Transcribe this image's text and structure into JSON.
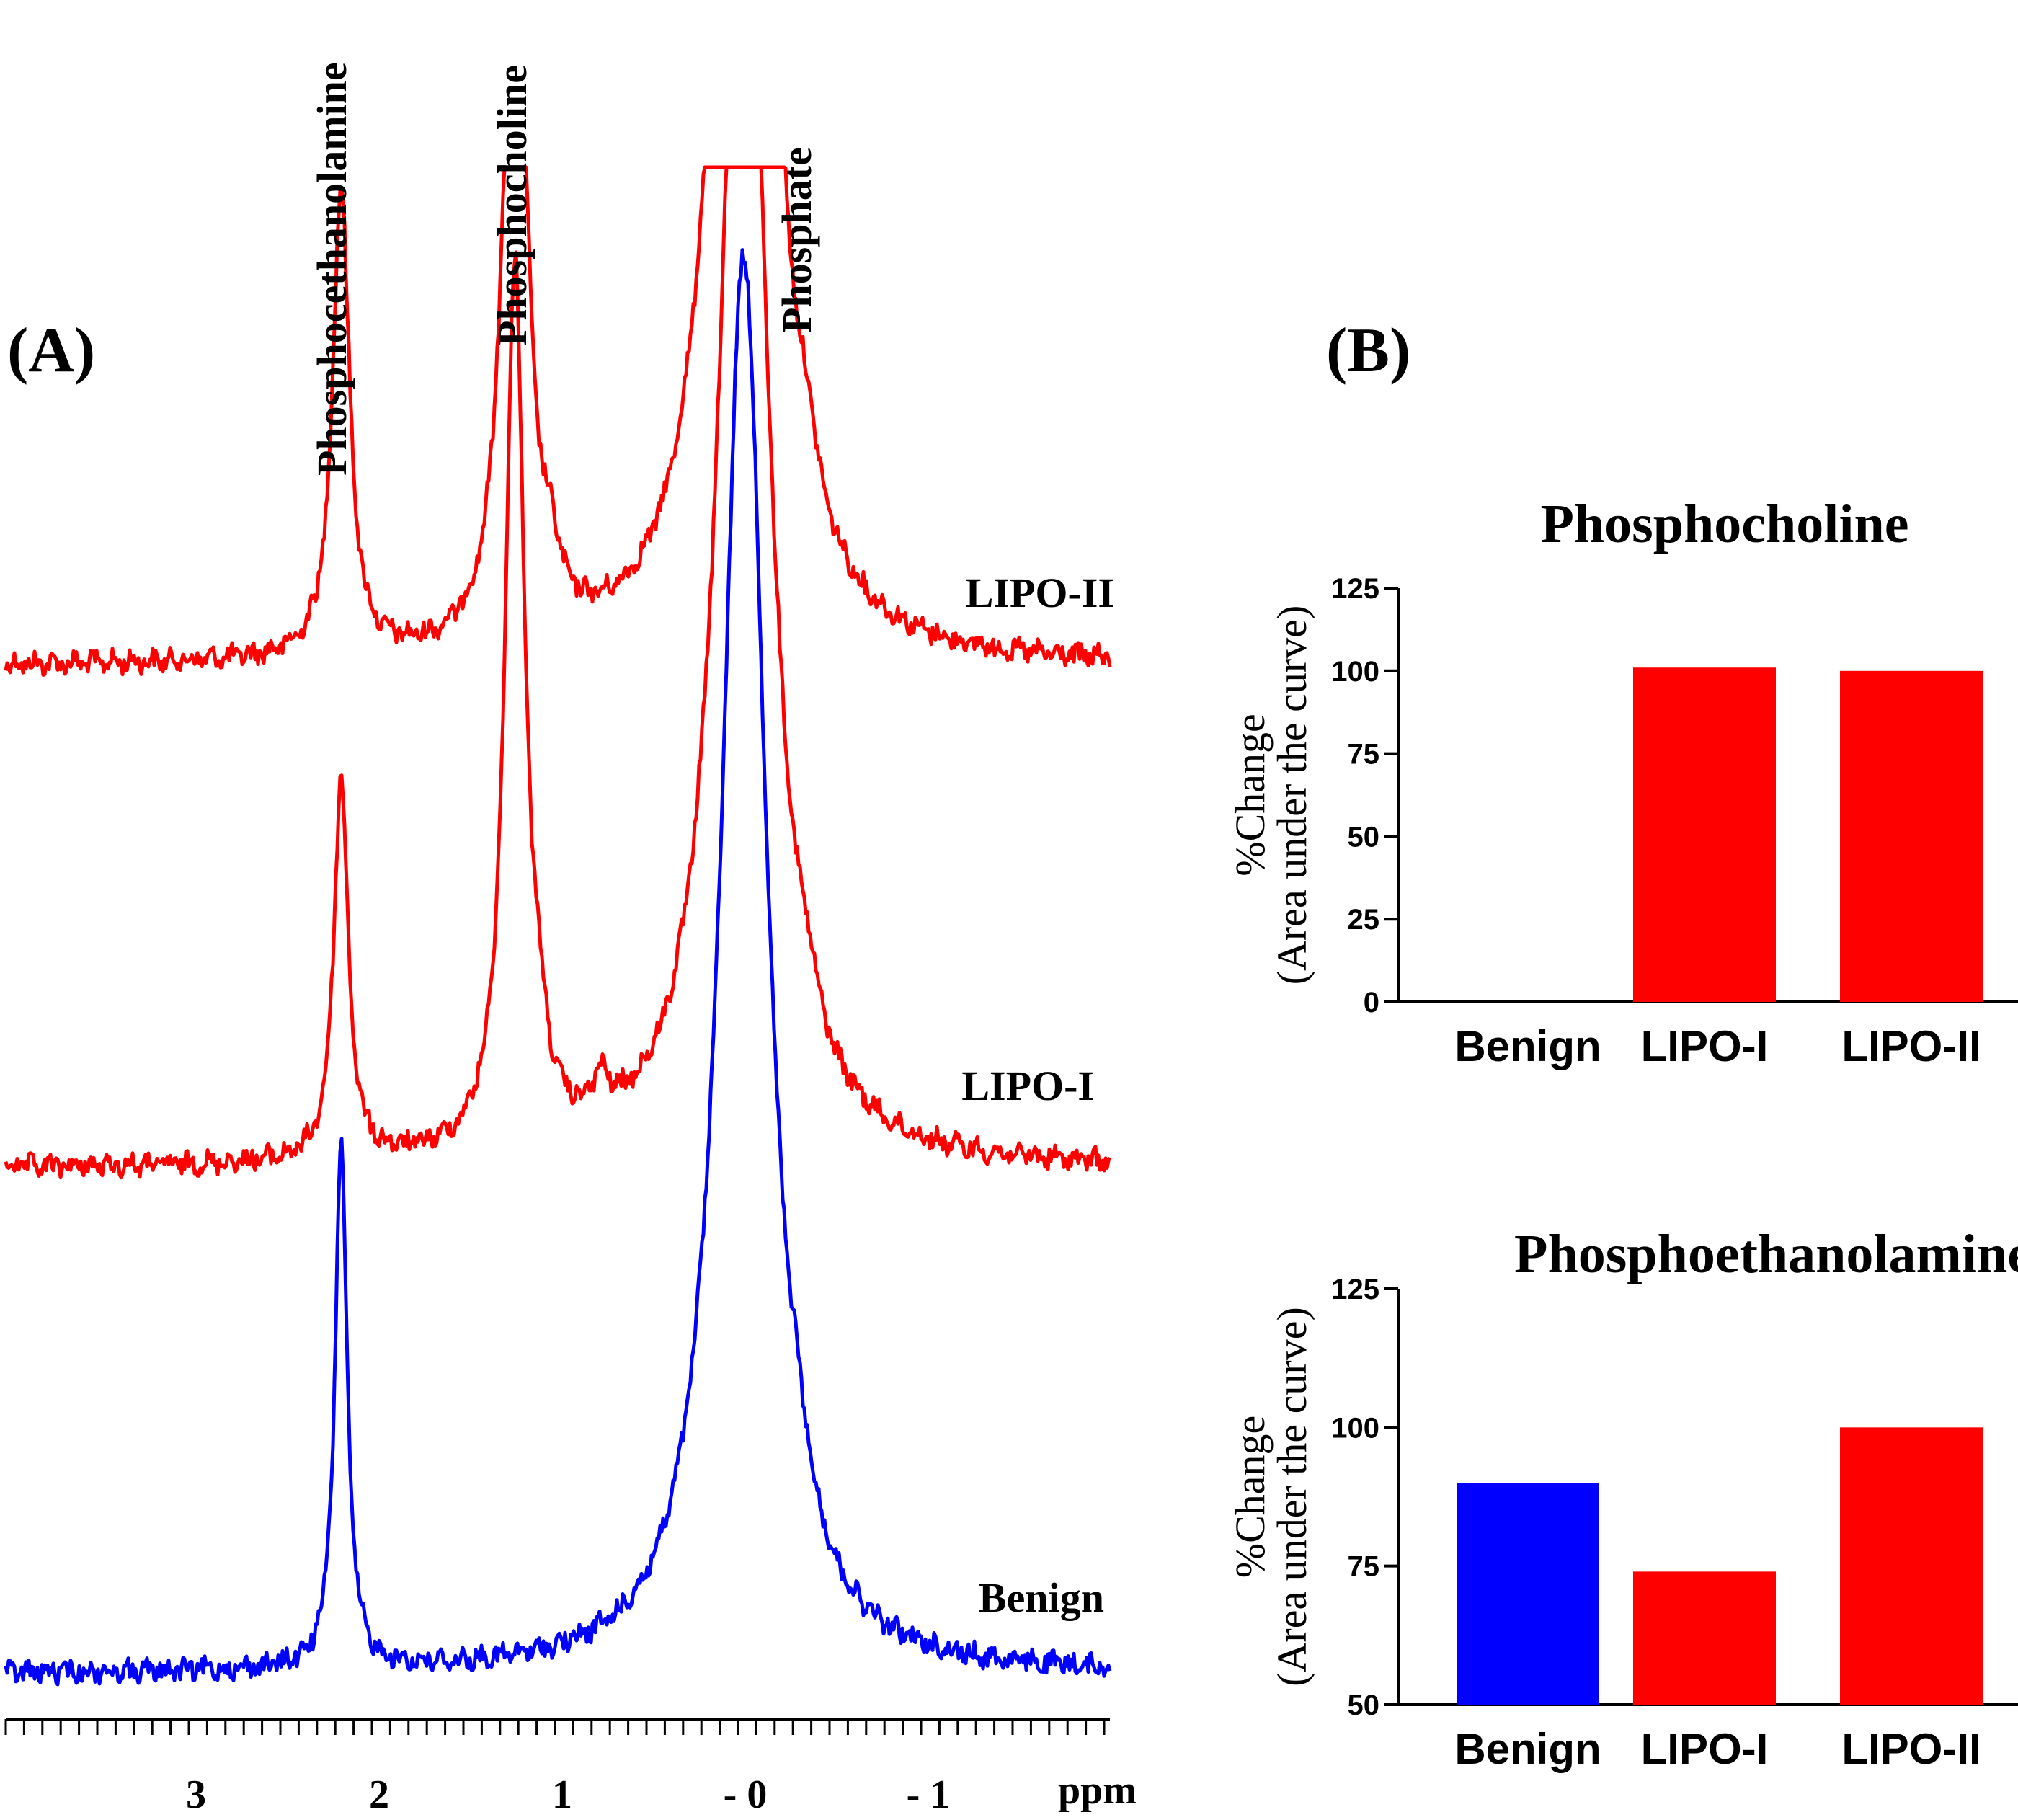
{
  "panel_a": {
    "label": "(A)",
    "peak_labels": [
      "Phosphocethanolamine",
      "Phosphocholine",
      "Phosphate"
    ],
    "trace_labels": [
      "LIPO-II",
      "LIPO-I",
      "Benign"
    ],
    "axis_unit": "ppm",
    "tick_labels": [
      "3",
      "2",
      "1",
      "- 0",
      "- 1"
    ]
  },
  "panel_b": {
    "label": "(B)"
  },
  "chart_data": [
    {
      "type": "line",
      "title": "",
      "xlabel": "ppm",
      "ylabel": "",
      "xlim": [
        4.0,
        -2.0
      ],
      "x_reversed": true,
      "x_ticks": [
        3,
        2,
        1,
        0,
        -1
      ],
      "peaks": [
        {
          "name": "Phosphocethanolamine",
          "ppm": 2.2
        },
        {
          "name": "Phosphocholine",
          "ppm": 1.25
        },
        {
          "name": "Phosphate",
          "ppm": 0.0
        }
      ],
      "series": [
        {
          "name": "LIPO-II",
          "color": "#ff0000",
          "peak_heights": {
            "2.2": 0.26,
            "1.25": 0.46,
            "0.0": 0.78
          }
        },
        {
          "name": "LIPO-I",
          "color": "#ff0000",
          "peak_heights": {
            "2.2": 0.21,
            "1.25": 0.49,
            "0.0": 0.78
          }
        },
        {
          "name": "Benign",
          "color": "#0000ff",
          "peak_heights": {
            "2.2": 0.29,
            "0.0": 0.78
          }
        }
      ]
    },
    {
      "type": "bar",
      "title": "Phosphocholine",
      "ylabel": "%Change",
      "ylabel2": "(Area under the curve)",
      "categories": [
        "Benign",
        "LIPO-I",
        "LIPO-II"
      ],
      "values": [
        0,
        101,
        100
      ],
      "colors": [
        "#0000ff",
        "#ff0000",
        "#ff0000"
      ],
      "ylim": [
        0,
        125
      ],
      "yticks": [
        "0",
        "25",
        "50",
        "75",
        "100",
        "125"
      ]
    },
    {
      "type": "bar",
      "title": "Phosphoethanolamine",
      "ylabel": "%Change",
      "ylabel2": "(Area under the curve)",
      "categories": [
        "Benign",
        "LIPO-I",
        "LIPO-II"
      ],
      "values": [
        90,
        74,
        100
      ],
      "colors": [
        "#0000ff",
        "#ff0000",
        "#ff0000"
      ],
      "ylim": [
        50,
        125
      ],
      "yticks": [
        "50",
        "75",
        "100",
        "125"
      ]
    }
  ]
}
